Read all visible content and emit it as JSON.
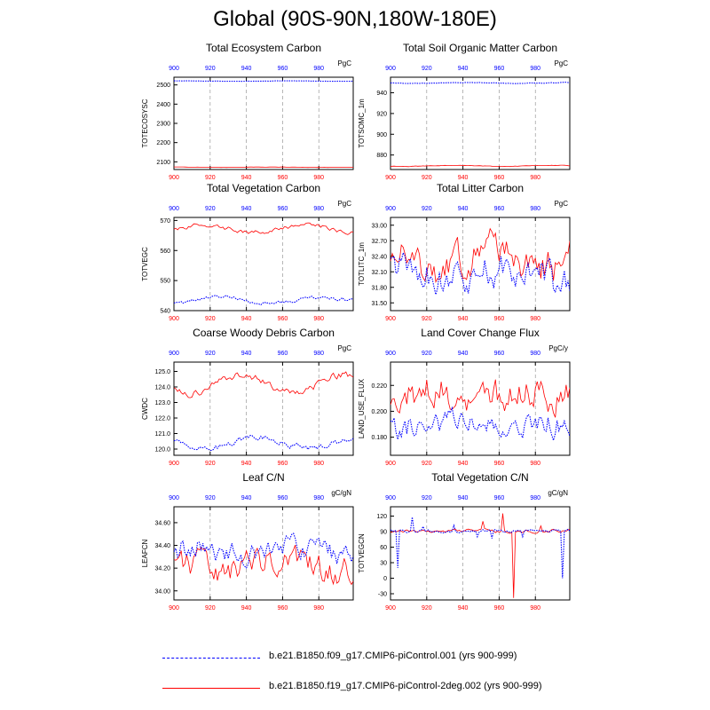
{
  "title": "Global (90S-90N,180W-180E)",
  "colors": {
    "run1": "#0000ff",
    "run2": "#ff0000",
    "grid": "#999999",
    "frame": "#000000"
  },
  "legend": [
    {
      "label": "b.e21.B1850.f09_g17.CMIP6-piControl.001 (yrs 900-999)",
      "color": "#0000ff",
      "style": "dashed"
    },
    {
      "label": "b.e21.B1850.f19_g17.CMIP6-piControl-2deg.002 (yrs 900-999)",
      "color": "#ff0000",
      "style": "solid"
    }
  ],
  "chart_data": [
    {
      "type": "line",
      "title": "Total Ecosystem Carbon",
      "ylabel": "TOTECOSYSC",
      "units": "PgC",
      "xlim": [
        900,
        999
      ],
      "xticks": [
        900,
        920,
        940,
        960,
        980
      ],
      "ylim": [
        2060,
        2540
      ],
      "yticks": [
        2100,
        2200,
        2300,
        2400,
        2500
      ],
      "series": [
        {
          "style": "blue",
          "mean": 2520,
          "amp": 1,
          "noise": 0.5,
          "seed": 1
        },
        {
          "style": "red",
          "mean": 2072,
          "amp": 1,
          "noise": 0.5,
          "seed": 2
        }
      ]
    },
    {
      "type": "line",
      "title": "Total Soil Organic Matter Carbon",
      "ylabel": "TOTSOMC_1m",
      "units": "PgC",
      "xlim": [
        900,
        999
      ],
      "xticks": [
        900,
        920,
        940,
        960,
        980
      ],
      "ylim": [
        866,
        955
      ],
      "yticks": [
        880,
        900,
        920,
        940
      ],
      "series": [
        {
          "style": "blue",
          "mean": 949.5,
          "amp": 0.4,
          "noise": 0.2,
          "seed": 3
        },
        {
          "style": "red",
          "mean": 869.5,
          "amp": 0.5,
          "noise": 0.2,
          "seed": 4
        }
      ]
    },
    {
      "type": "line",
      "title": "Total Vegetation Carbon",
      "ylabel": "TOTVEGC",
      "units": "PgC",
      "xlim": [
        900,
        999
      ],
      "xticks": [
        900,
        920,
        940,
        960,
        980
      ],
      "ylim": [
        540,
        571
      ],
      "yticks": [
        540,
        550,
        560,
        570
      ],
      "series": [
        {
          "style": "blue",
          "mean": 543.5,
          "amp": 1.0,
          "noise": 0.5,
          "seed": 5
        },
        {
          "style": "red",
          "mean": 567.2,
          "amp": 1.2,
          "noise": 0.6,
          "seed": 6
        }
      ]
    },
    {
      "type": "line",
      "title": "Total Litter Carbon",
      "ylabel": "TOTLITC_1m",
      "units": "PgC",
      "xlim": [
        900,
        999
      ],
      "xticks": [
        900,
        920,
        940,
        960,
        980
      ],
      "ylim": [
        31.35,
        33.15
      ],
      "yticks": [
        31.5,
        31.8,
        32.1,
        32.4,
        32.7,
        33.0
      ],
      "yticklabels": [
        "31.50",
        "31.80",
        "32.10",
        "32.40",
        "32.70",
        "33.00"
      ],
      "series": [
        {
          "style": "blue",
          "mean": 32.05,
          "amp": 0.15,
          "noise": 0.28,
          "seed": 7
        },
        {
          "style": "red",
          "mean": 32.35,
          "amp": 0.2,
          "noise": 0.3,
          "seed": 8
        }
      ]
    },
    {
      "type": "line",
      "title": "Coarse Woody Debris Carbon",
      "ylabel": "CWDC",
      "units": "PgC",
      "xlim": [
        900,
        999
      ],
      "xticks": [
        900,
        920,
        940,
        960,
        980
      ],
      "ylim": [
        119.6,
        125.6
      ],
      "yticks": [
        120,
        121,
        122,
        123,
        124,
        125
      ],
      "yticklabels": [
        "120.0",
        "121.0",
        "122.0",
        "123.0",
        "124.0",
        "125.0"
      ],
      "series": [
        {
          "style": "blue",
          "mean": 120.4,
          "amp": 0.35,
          "noise": 0.15,
          "seed": 9
        },
        {
          "style": "red",
          "mean": 124.2,
          "amp": 0.6,
          "noise": 0.2,
          "seed": 10
        }
      ]
    },
    {
      "type": "line",
      "title": "Land Cover Change Flux",
      "ylabel": "LAND_USE_FLUX",
      "units": "PgC/y",
      "xlim": [
        900,
        999
      ],
      "xticks": [
        900,
        920,
        940,
        960,
        980
      ],
      "ylim": [
        0.166,
        0.238
      ],
      "yticks": [
        0.18,
        0.2,
        0.22
      ],
      "yticklabels": [
        "0.180",
        "0.200",
        "0.220"
      ],
      "series": [
        {
          "style": "blue",
          "mean": 0.188,
          "amp": 0.002,
          "noise": 0.008,
          "seed": 11
        },
        {
          "style": "red",
          "mean": 0.214,
          "amp": 0.002,
          "noise": 0.011,
          "seed": 12
        }
      ]
    },
    {
      "type": "line",
      "title": "Leaf C/N",
      "ylabel": "LEAFCN",
      "units": "gC/gN",
      "xlim": [
        900,
        999
      ],
      "xticks": [
        900,
        920,
        940,
        960,
        980
      ],
      "ylim": [
        33.92,
        34.74
      ],
      "yticks": [
        34.0,
        34.2,
        34.4,
        34.6
      ],
      "yticklabels": [
        "34.00",
        "34.20",
        "34.40",
        "34.60"
      ],
      "series": [
        {
          "style": "blue",
          "mean": 34.35,
          "amp": 0.04,
          "noise": 0.08,
          "seed": 13
        },
        {
          "style": "red",
          "mean": 34.22,
          "amp": 0.04,
          "noise": 0.1,
          "seed": 14
        }
      ]
    },
    {
      "type": "line",
      "title": "Total Vegetation C/N",
      "ylabel": "TOTVEGCN",
      "units": "gC/gN",
      "xlim": [
        900,
        999
      ],
      "xticks": [
        900,
        920,
        940,
        960,
        980
      ],
      "ylim": [
        -42,
        138
      ],
      "yticks": [
        -30,
        0,
        30,
        60,
        90,
        120
      ],
      "series": [
        {
          "style": "blue",
          "mean": 91,
          "amp": 1,
          "noise": 2.5,
          "seed": 15,
          "spikes": [
            [
              904,
              20
            ],
            [
              912,
              118
            ],
            [
              918,
              100
            ],
            [
              935,
              102
            ],
            [
              948,
              80
            ],
            [
              956,
              77
            ],
            [
              973,
              80
            ],
            [
              995,
              0
            ]
          ]
        },
        {
          "style": "red",
          "mean": 91,
          "amp": 1,
          "noise": 2.5,
          "seed": 16,
          "spikes": [
            [
              951,
              110
            ],
            [
              962,
              125
            ],
            [
              968,
              -38
            ],
            [
              983,
              101
            ]
          ]
        }
      ]
    }
  ]
}
